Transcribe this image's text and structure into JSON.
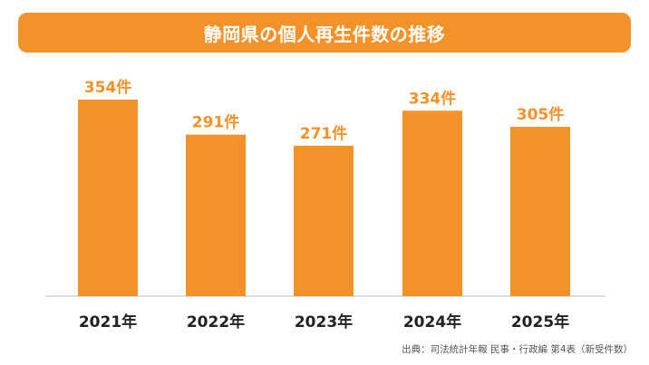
{
  "title": "静岡県の個人再生件数の推移",
  "source_note": "出典：司法統計年報 民事・行政編 第4表（新受件数）",
  "colors": {
    "bar": "#f39228",
    "title_bg": "#f39228",
    "value_label": "#f39228",
    "axis": "#bdbdbd"
  },
  "chart_data": {
    "type": "bar",
    "title": "静岡県の個人再生件数の推移",
    "xlabel": "",
    "ylabel": "",
    "categories": [
      "2021年",
      "2022年",
      "2023年",
      "2024年",
      "2025年"
    ],
    "values": [
      354,
      291,
      271,
      334,
      305
    ],
    "value_labels": [
      "354件",
      "291件",
      "271件",
      "334件",
      "305件"
    ],
    "ylim": [
      0,
      400
    ],
    "grid": false,
    "legend": "none"
  }
}
